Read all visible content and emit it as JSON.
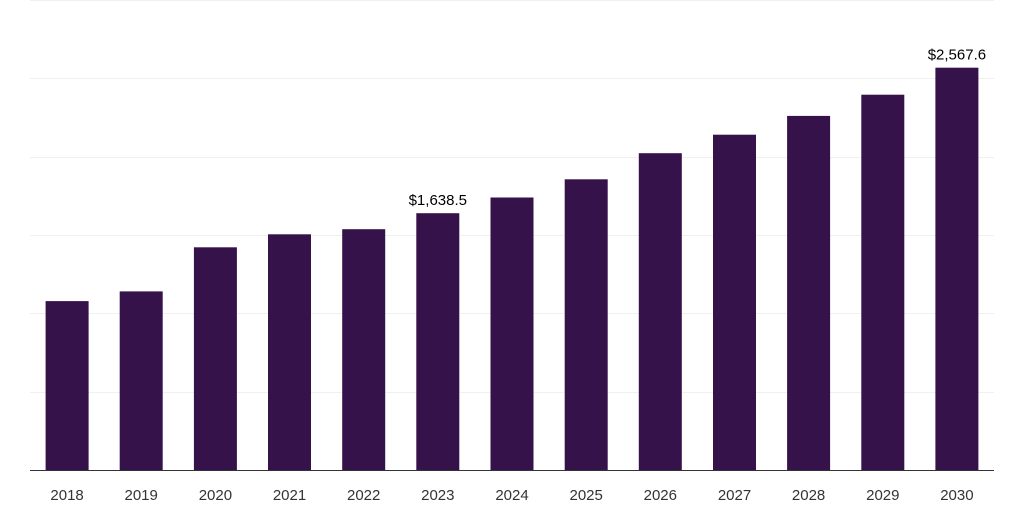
{
  "colors": {
    "bar": "#36124a",
    "grid": "#f0f0f0",
    "axis": "#333333",
    "label": "#000000"
  },
  "chart_data": {
    "type": "bar",
    "title": "",
    "xlabel": "",
    "ylabel": "",
    "grid": true,
    "legend": "none",
    "ylim": [
      0,
      3000
    ],
    "categories": [
      "2018",
      "2019",
      "2020",
      "2021",
      "2022",
      "2023",
      "2024",
      "2025",
      "2026",
      "2027",
      "2028",
      "2029",
      "2030"
    ],
    "series": [
      {
        "values": [
          1078,
          1140,
          1421,
          1504,
          1537,
          1638.5,
          1739,
          1855,
          2022,
          2140,
          2260,
          2395,
          2567.6
        ]
      }
    ],
    "data_labels": [
      {
        "category": "2023",
        "text": "$1,638.5"
      },
      {
        "category": "2030",
        "text": "$2,567.6"
      }
    ]
  }
}
